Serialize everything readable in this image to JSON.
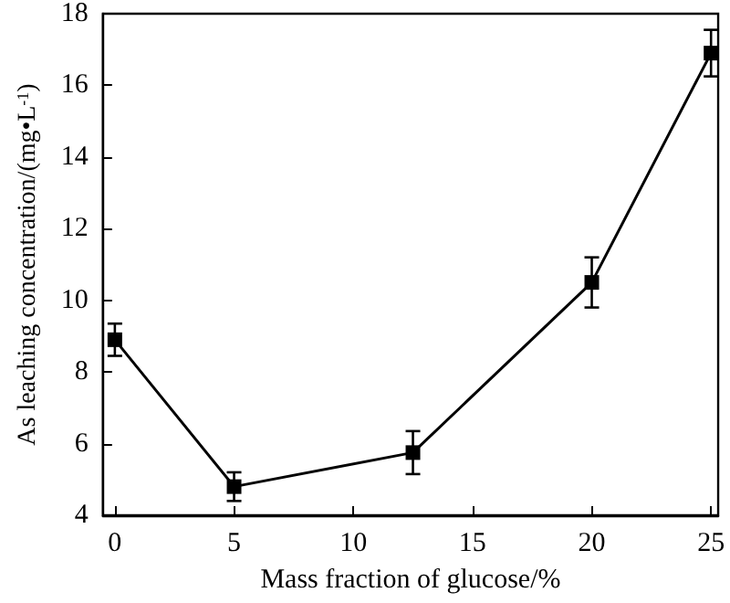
{
  "chart_data": {
    "type": "line",
    "xlabel": "Mass fraction of glucose/%",
    "ylabel": "As leaching concentration/(mg•L$^{-1}$)",
    "x": [
      0,
      5,
      12.5,
      20,
      25
    ],
    "series": [
      {
        "color": "#000000",
        "values": [
          8.9,
          4.8,
          5.75,
          10.5,
          16.9
        ],
        "errors": [
          0.45,
          0.4,
          0.6,
          0.7,
          0.65
        ]
      }
    ],
    "xlim": [
      -0.5,
      25.3
    ],
    "xticks": [
      0,
      5,
      10,
      15,
      20,
      25
    ],
    "ylim": [
      4,
      18
    ],
    "yticks": [
      4,
      6,
      8,
      10,
      12,
      14,
      16,
      18
    ],
    "grid": false,
    "marker": "square",
    "line_style": "solid"
  }
}
